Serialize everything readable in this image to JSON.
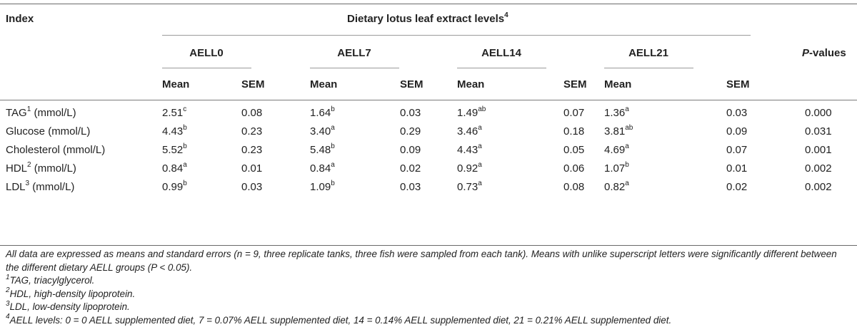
{
  "header": {
    "index_label": "Index",
    "group_title": "Dietary lotus leaf extract levels",
    "group_title_sup": "4",
    "groups": [
      "AELL0",
      "AELL7",
      "AELL14",
      "AELL21"
    ],
    "pvalues_label": "P",
    "pvalues_suffix": "-values",
    "mean_label": "Mean",
    "sem_label": "SEM"
  },
  "rows": [
    {
      "label": "TAG",
      "label_sup": "1",
      "unit": " (mmol/L)",
      "cells": [
        {
          "mean": "2.51",
          "sup": "c",
          "sem": "0.08"
        },
        {
          "mean": "1.64",
          "sup": "b",
          "sem": "0.03"
        },
        {
          "mean": "1.49",
          "sup": "ab",
          "sem": "0.07"
        },
        {
          "mean": "1.36",
          "sup": "a",
          "sem": "0.03"
        }
      ],
      "p": "0.000"
    },
    {
      "label": "Glucose (mmol/L)",
      "label_sup": "",
      "unit": "",
      "cells": [
        {
          "mean": "4.43",
          "sup": "b",
          "sem": "0.23"
        },
        {
          "mean": "3.40",
          "sup": "a",
          "sem": "0.29"
        },
        {
          "mean": "3.46",
          "sup": "a",
          "sem": "0.18"
        },
        {
          "mean": "3.81",
          "sup": "ab",
          "sem": "0.09"
        }
      ],
      "p": "0.031"
    },
    {
      "label": "Cholesterol (mmol/L)",
      "label_sup": "",
      "unit": "",
      "cells": [
        {
          "mean": "5.52",
          "sup": "b",
          "sem": "0.23"
        },
        {
          "mean": "5.48",
          "sup": "b",
          "sem": "0.09"
        },
        {
          "mean": "4.43",
          "sup": "a",
          "sem": "0.05"
        },
        {
          "mean": "4.69",
          "sup": "a",
          "sem": "0.07"
        }
      ],
      "p": "0.001"
    },
    {
      "label": "HDL",
      "label_sup": "2",
      "unit": " (mmol/L)",
      "cells": [
        {
          "mean": "0.84",
          "sup": "a",
          "sem": "0.01"
        },
        {
          "mean": "0.84",
          "sup": "a",
          "sem": "0.02"
        },
        {
          "mean": "0.92",
          "sup": "a",
          "sem": "0.06"
        },
        {
          "mean": "1.07",
          "sup": "b",
          "sem": "0.01"
        }
      ],
      "p": "0.002"
    },
    {
      "label": "LDL",
      "label_sup": "3",
      "unit": " (mmol/L)",
      "cells": [
        {
          "mean": "0.99",
          "sup": "b",
          "sem": "0.03"
        },
        {
          "mean": "1.09",
          "sup": "b",
          "sem": "0.03"
        },
        {
          "mean": "0.73",
          "sup": "a",
          "sem": "0.08"
        },
        {
          "mean": "0.82",
          "sup": "a",
          "sem": "0.02"
        }
      ],
      "p": "0.002"
    }
  ],
  "notes": {
    "main": "All data are expressed as means and standard errors (n = 9, three replicate tanks, three fish were sampled from each tank). Means with unlike superscript letters were significantly different between the different dietary AELL groups (P < 0.05).",
    "n1_sup": "1",
    "n1": "TAG, triacylglycerol.",
    "n2_sup": "2",
    "n2": "HDL, high-density lipoprotein.",
    "n3_sup": "3",
    "n3": "LDL, low-density lipoprotein.",
    "n4_sup": "4",
    "n4": "AELL levels: 0 = 0 AELL supplemented diet, 7 = 0.07% AELL supplemented diet, 14 = 0.14% AELL supplemented diet, 21 = 0.21% AELL supplemented diet."
  }
}
